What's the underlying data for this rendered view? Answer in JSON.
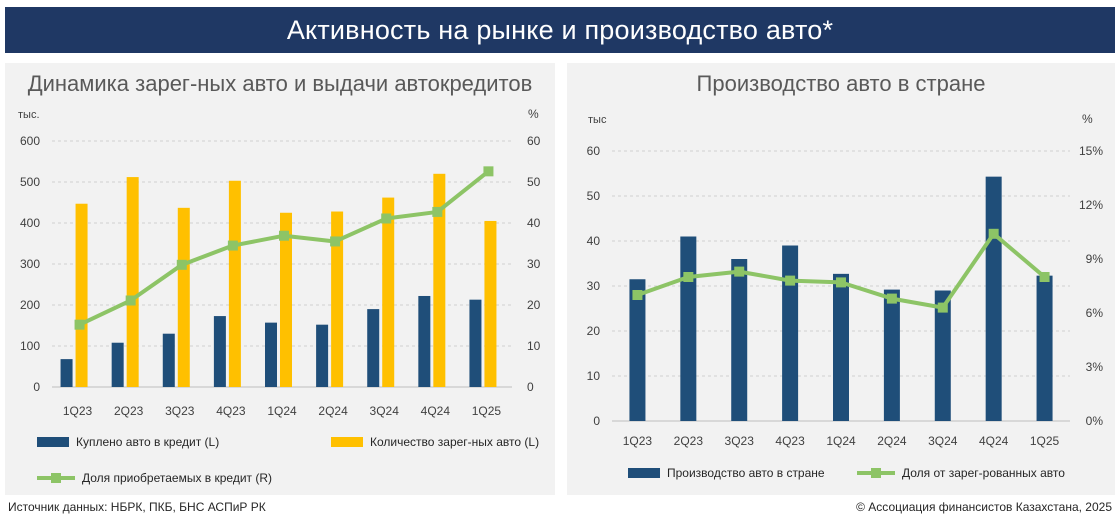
{
  "header": {
    "title": "Активность на рынке и производство авто*"
  },
  "colors": {
    "navy": "#1f3864",
    "bar_blue": "#1f4e79",
    "bar_yellow": "#ffc000",
    "line_green": "#8dc466",
    "marker_green": "#8dc466"
  },
  "footer": {
    "source": "Источник данных: НБРК, ПКБ, БНС АСПиР РК",
    "copyright": "© Ассоциация финансистов Казахстана, 2025"
  },
  "chart_data": [
    {
      "type": "bar",
      "title": "Динамика зарег-ных авто и выдачи автокредитов",
      "left_axis_unit": "тыс.",
      "right_axis_unit": "%",
      "categories": [
        "1Q23",
        "2Q23",
        "3Q23",
        "4Q23",
        "1Q24",
        "2Q24",
        "3Q24",
        "4Q24",
        "1Q25"
      ],
      "ylim_left": [
        0,
        600
      ],
      "left_ticks": [
        "0",
        "100",
        "200",
        "300",
        "400",
        "500",
        "600"
      ],
      "ylim_right": [
        0,
        60
      ],
      "right_ticks": [
        "0",
        "10",
        "20",
        "30",
        "40",
        "50",
        "60"
      ],
      "series": [
        {
          "name": "Куплено авто в кредит (L)",
          "kind": "bar",
          "axis": "left",
          "color": "#1f4e79",
          "values": [
            68,
            108,
            130,
            173,
            157,
            152,
            190,
            222,
            213
          ]
        },
        {
          "name": "Количество зарег-ных авто (L)",
          "kind": "bar",
          "axis": "left",
          "color": "#ffc000",
          "values": [
            447,
            512,
            437,
            503,
            425,
            428,
            462,
            520,
            405
          ]
        },
        {
          "name": "Доля приобретаемых в кредит (R)",
          "kind": "line",
          "axis": "right",
          "color": "#8dc466",
          "values": [
            15.2,
            21.1,
            29.8,
            34.5,
            36.9,
            35.5,
            41.1,
            42.7,
            52.6
          ]
        }
      ],
      "grid": true,
      "legend_position": "bottom"
    },
    {
      "type": "bar",
      "title": "Производство авто в стране",
      "left_axis_unit": "тыс",
      "right_axis_unit": "%",
      "categories": [
        "1Q23",
        "2Q23",
        "3Q23",
        "4Q23",
        "1Q24",
        "2Q24",
        "3Q24",
        "4Q24",
        "1Q25"
      ],
      "ylim_left": [
        0,
        60
      ],
      "left_ticks": [
        "0",
        "10",
        "20",
        "30",
        "40",
        "50",
        "60"
      ],
      "ylim_right": [
        0,
        15
      ],
      "right_ticks": [
        "0%",
        "3%",
        "6%",
        "9%",
        "12%",
        "15%"
      ],
      "series": [
        {
          "name": "Производство авто в стране",
          "kind": "bar",
          "axis": "left",
          "color": "#1f4e79",
          "values": [
            31.5,
            41,
            36,
            39,
            32.7,
            29.2,
            29,
            54.3,
            32.3
          ]
        },
        {
          "name": "Доля от зарег-рованных авто",
          "kind": "line",
          "axis": "right",
          "color": "#8dc466",
          "values": [
            7.0,
            8.0,
            8.3,
            7.8,
            7.7,
            6.8,
            6.3,
            10.4,
            8.0
          ]
        }
      ],
      "grid": true,
      "legend_position": "bottom"
    }
  ]
}
